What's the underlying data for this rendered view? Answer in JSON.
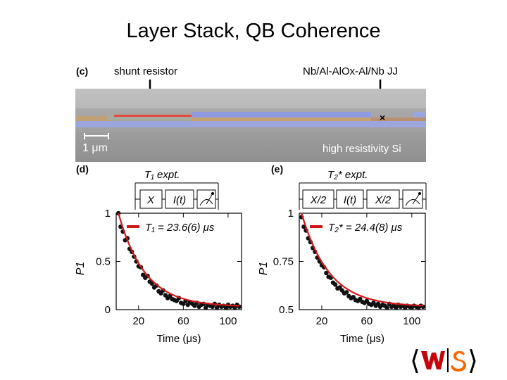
{
  "slide": {
    "title": "Layer Stack, QB Coherence"
  },
  "panel_c": {
    "label": "(c)",
    "arrow_left_label": "shunt resistor",
    "arrow_right_label": "Nb/Al-AlOx-Al/Nb JJ",
    "scale_bar_label": "1 μm",
    "substrate_label": "high resistivity Si"
  },
  "panel_d": {
    "label": "(d)",
    "sequence_title": "T₁ expt.",
    "pulses": [
      "X",
      "I(t)"
    ],
    "legend": "T₁ = 23.6(6) μs"
  },
  "panel_e": {
    "label": "(e)",
    "sequence_title": "T₂* expt.",
    "pulses": [
      "X/2",
      "I(t)",
      "X/2"
    ],
    "legend": "T₂* = 24.4(8) μs"
  },
  "chart_data": [
    {
      "type": "scatter",
      "panel": "d",
      "xlabel": "Time (μs)",
      "ylabel": "P1",
      "xlim": [
        0,
        112
      ],
      "ylim": [
        0,
        1
      ],
      "x_ticks": [
        20,
        60,
        100
      ],
      "y_ticks": [
        0,
        0.5,
        1
      ],
      "y_tick_labels": [
        "0",
        "0.5",
        "1"
      ],
      "series": [
        {
          "name": "T₁ = 23.6(6) μs",
          "fit": {
            "model": "exp",
            "tau": 23.6,
            "y0": 0.03,
            "amp": 0.97
          },
          "x": [
            2,
            4,
            6,
            8,
            10,
            12,
            14,
            16,
            18,
            20,
            22,
            24,
            26,
            28,
            30,
            32,
            34,
            36,
            38,
            40,
            42,
            44,
            46,
            48,
            50,
            52,
            54,
            56,
            58,
            60,
            62,
            64,
            66,
            68,
            70,
            72,
            74,
            76,
            78,
            80,
            82,
            84,
            86,
            88,
            90,
            92,
            94,
            96,
            98,
            100,
            102,
            104,
            106,
            108,
            110
          ],
          "y": [
            1.0,
            0.86,
            0.81,
            0.72,
            0.74,
            0.63,
            0.6,
            0.55,
            0.5,
            0.45,
            0.44,
            0.36,
            0.33,
            0.35,
            0.29,
            0.27,
            0.23,
            0.25,
            0.19,
            0.17,
            0.2,
            0.15,
            0.12,
            0.14,
            0.11,
            0.1,
            0.09,
            0.12,
            0.07,
            0.06,
            0.09,
            0.05,
            0.08,
            0.06,
            0.04,
            0.07,
            0.03,
            0.05,
            0.06,
            0.02,
            0.05,
            0.04,
            0.03,
            0.06,
            0.02,
            0.05,
            0.03,
            0.04,
            0.02,
            0.05,
            0.03,
            0.04,
            0.02,
            0.05,
            0.03
          ]
        }
      ]
    },
    {
      "type": "scatter",
      "panel": "e",
      "xlabel": "Time (μs)",
      "ylabel": "P1",
      "xlim": [
        0,
        112
      ],
      "ylim": [
        0.5,
        1
      ],
      "x_ticks": [
        20,
        60,
        100
      ],
      "y_ticks": [
        0.5,
        0.75,
        1
      ],
      "y_tick_labels": [
        "0.5",
        "0.75",
        "1"
      ],
      "series": [
        {
          "name": "T₂* = 24.4(8) μs",
          "fit": {
            "model": "exp",
            "tau": 24.4,
            "y0": 0.515,
            "amp": 0.485
          },
          "x": [
            2,
            4,
            6,
            8,
            10,
            12,
            14,
            16,
            18,
            20,
            22,
            24,
            26,
            28,
            30,
            32,
            34,
            36,
            38,
            40,
            42,
            44,
            46,
            48,
            50,
            52,
            54,
            56,
            58,
            60,
            62,
            64,
            66,
            68,
            70,
            72,
            74,
            76,
            78,
            80,
            82,
            84,
            86,
            88,
            90,
            92,
            94,
            96,
            98,
            100,
            102,
            104,
            106,
            108,
            110
          ],
          "y": [
            0.98,
            0.93,
            0.91,
            0.87,
            0.85,
            0.82,
            0.8,
            0.77,
            0.75,
            0.73,
            0.72,
            0.69,
            0.67,
            0.665,
            0.64,
            0.63,
            0.61,
            0.615,
            0.6,
            0.585,
            0.59,
            0.57,
            0.56,
            0.565,
            0.55,
            0.545,
            0.555,
            0.54,
            0.535,
            0.545,
            0.53,
            0.525,
            0.535,
            0.52,
            0.53,
            0.515,
            0.525,
            0.52,
            0.51,
            0.53,
            0.515,
            0.52,
            0.51,
            0.525,
            0.515,
            0.52,
            0.51,
            0.52,
            0.515,
            0.51,
            0.52,
            0.515,
            0.51,
            0.52,
            0.515
          ]
        }
      ]
    }
  ],
  "logo": {
    "left_glyph": "⟨",
    "right_glyph": "⟩",
    "w_color": "#c5050c",
    "s_color": "#f76900"
  }
}
